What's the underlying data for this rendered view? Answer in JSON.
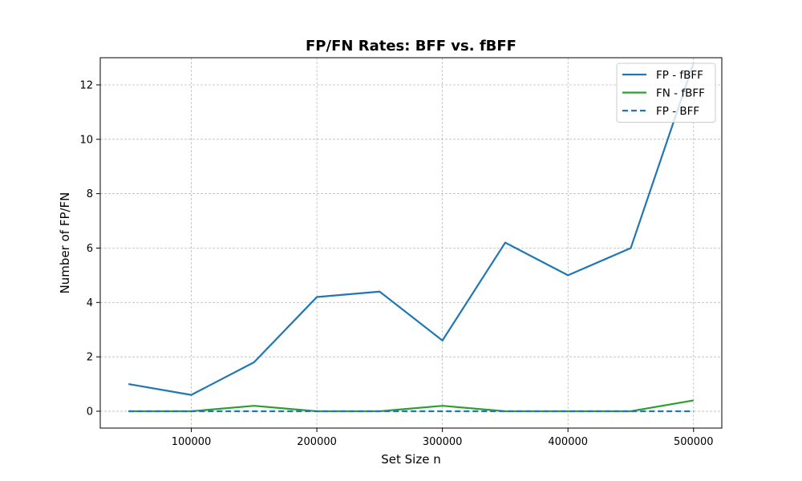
{
  "chart_data": {
    "type": "line",
    "title": "FP/FN Rates: BFF vs. fBFF",
    "xlabel": "Set Size n",
    "ylabel": "Number of FP/FN",
    "xlim": [
      27500,
      522500
    ],
    "ylim": [
      -0.62,
      13.0
    ],
    "xticks": [
      100000,
      200000,
      300000,
      400000,
      500000
    ],
    "yticks": [
      0,
      2,
      4,
      6,
      8,
      10,
      12
    ],
    "grid": true,
    "legend_position": "top-right",
    "x": [
      50000,
      100000,
      150000,
      200000,
      250000,
      300000,
      350000,
      400000,
      450000,
      500000
    ],
    "series": [
      {
        "name": "FP - fBFF",
        "color": "#1f77b4",
        "dashed": false,
        "values": [
          1.0,
          0.6,
          1.8,
          4.2,
          4.4,
          2.6,
          6.2,
          5.0,
          6.0,
          12.8
        ]
      },
      {
        "name": "FN - fBFF",
        "color": "#2ca02c",
        "dashed": false,
        "values": [
          0.0,
          0.0,
          0.2,
          0.0,
          0.0,
          0.2,
          0.0,
          0.0,
          0.0,
          0.4
        ]
      },
      {
        "name": "FP - BFF",
        "color": "#1f77b4",
        "dashed": true,
        "values": [
          0,
          0,
          0,
          0,
          0,
          0,
          0,
          0,
          0,
          0
        ]
      }
    ]
  }
}
